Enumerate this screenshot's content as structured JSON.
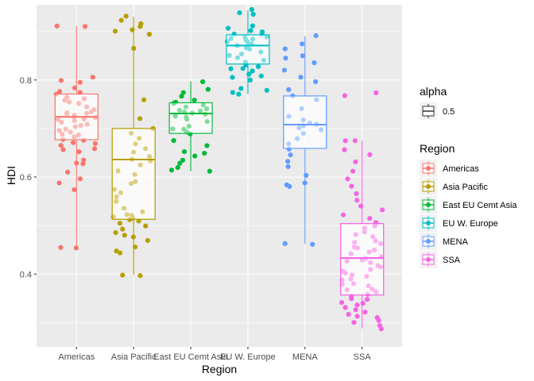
{
  "chart_data": {
    "type": "boxplot",
    "title": "",
    "xlabel": "Region",
    "ylabel": "HDI",
    "ylim": [
      0.25,
      0.955
    ],
    "yticks": [
      0.4,
      0.6,
      0.8
    ],
    "ytick_labels": [
      "0.4",
      "0.6",
      "0.8"
    ],
    "categories": [
      "Americas",
      "Asia Pacific",
      "East EU Cemt Asia",
      "EU W. Europe",
      "MENA",
      "SSA"
    ],
    "colors": {
      "Americas": "#F8766D",
      "Asia Pacific": "#B79F00",
      "East EU Cemt Asia": "#00BA38",
      "EU W. Europe": "#00BFC4",
      "MENA": "#619CFF",
      "SSA": "#F564E3"
    },
    "panel_background": "#EBEBEB",
    "grid": true,
    "box_alpha": 0.5,
    "series": [
      {
        "name": "Americas",
        "box": {
          "min": 0.454,
          "q1": 0.677,
          "median": 0.724,
          "q3": 0.771,
          "max": 0.911
        },
        "points": [
          0.454,
          0.454,
          0.574,
          0.589,
          0.596,
          0.611,
          0.626,
          0.628,
          0.634,
          0.652,
          0.655,
          0.66,
          0.665,
          0.668,
          0.671,
          0.675,
          0.679,
          0.682,
          0.686,
          0.689,
          0.692,
          0.697,
          0.7,
          0.703,
          0.706,
          0.709,
          0.712,
          0.715,
          0.718,
          0.72,
          0.722,
          0.724,
          0.725,
          0.727,
          0.729,
          0.73,
          0.733,
          0.736,
          0.74,
          0.745,
          0.75,
          0.754,
          0.758,
          0.762,
          0.766,
          0.77,
          0.774,
          0.778,
          0.785,
          0.795,
          0.8,
          0.805,
          0.91,
          0.911
        ]
      },
      {
        "name": "Asia Pacific",
        "box": {
          "min": 0.398,
          "q1": 0.513,
          "median": 0.636,
          "q3": 0.7,
          "max": 0.93
        },
        "points": [
          0.398,
          0.399,
          0.442,
          0.446,
          0.457,
          0.468,
          0.475,
          0.48,
          0.485,
          0.492,
          0.498,
          0.503,
          0.508,
          0.511,
          0.515,
          0.519,
          0.522,
          0.524,
          0.529,
          0.535,
          0.551,
          0.558,
          0.567,
          0.575,
          0.586,
          0.592,
          0.605,
          0.614,
          0.625,
          0.634,
          0.638,
          0.642,
          0.652,
          0.66,
          0.67,
          0.681,
          0.689,
          0.7,
          0.72,
          0.76,
          0.865,
          0.895,
          0.9,
          0.905,
          0.909,
          0.915,
          0.923,
          0.93
        ]
      },
      {
        "name": "East EU Cemt Asia",
        "box": {
          "min": 0.612,
          "q1": 0.69,
          "median": 0.731,
          "q3": 0.753,
          "max": 0.797
        },
        "points": [
          0.612,
          0.614,
          0.62,
          0.629,
          0.636,
          0.643,
          0.648,
          0.652,
          0.665,
          0.674,
          0.688,
          0.693,
          0.697,
          0.7,
          0.705,
          0.713,
          0.718,
          0.722,
          0.726,
          0.728,
          0.731,
          0.733,
          0.736,
          0.738,
          0.742,
          0.746,
          0.748,
          0.751,
          0.755,
          0.76,
          0.766,
          0.773,
          0.781,
          0.797
        ]
      },
      {
        "name": "EU W. Europe",
        "box": {
          "min": 0.771,
          "q1": 0.833,
          "median": 0.871,
          "q3": 0.893,
          "max": 0.944
        },
        "points": [
          0.771,
          0.775,
          0.779,
          0.782,
          0.8,
          0.805,
          0.809,
          0.812,
          0.818,
          0.822,
          0.825,
          0.829,
          0.832,
          0.835,
          0.84,
          0.845,
          0.85,
          0.855,
          0.858,
          0.862,
          0.865,
          0.868,
          0.871,
          0.873,
          0.875,
          0.877,
          0.879,
          0.88,
          0.883,
          0.885,
          0.888,
          0.89,
          0.893,
          0.896,
          0.9,
          0.903,
          0.906,
          0.91,
          0.935,
          0.94,
          0.944
        ]
      },
      {
        "name": "MENA",
        "box": {
          "min": 0.462,
          "q1": 0.659,
          "median": 0.708,
          "q3": 0.767,
          "max": 0.89
        },
        "points": [
          0.462,
          0.462,
          0.58,
          0.583,
          0.588,
          0.605,
          0.621,
          0.631,
          0.645,
          0.657,
          0.668,
          0.68,
          0.69,
          0.698,
          0.702,
          0.705,
          0.708,
          0.711,
          0.719,
          0.725,
          0.74,
          0.76,
          0.768,
          0.78,
          0.795,
          0.805,
          0.82,
          0.835,
          0.845,
          0.85,
          0.865,
          0.875,
          0.89
        ]
      },
      {
        "name": "SSA",
        "box": {
          "min": 0.288,
          "q1": 0.357,
          "median": 0.433,
          "q3": 0.504,
          "max": 0.675
        },
        "points": [
          0.288,
          0.293,
          0.3,
          0.305,
          0.31,
          0.314,
          0.318,
          0.322,
          0.327,
          0.331,
          0.335,
          0.339,
          0.343,
          0.347,
          0.351,
          0.355,
          0.358,
          0.362,
          0.366,
          0.37,
          0.374,
          0.378,
          0.382,
          0.386,
          0.39,
          0.394,
          0.398,
          0.402,
          0.406,
          0.41,
          0.414,
          0.418,
          0.422,
          0.426,
          0.43,
          0.433,
          0.437,
          0.441,
          0.445,
          0.449,
          0.453,
          0.457,
          0.461,
          0.465,
          0.47,
          0.476,
          0.482,
          0.488,
          0.494,
          0.5,
          0.507,
          0.515,
          0.523,
          0.531,
          0.54,
          0.551,
          0.565,
          0.58,
          0.595,
          0.612,
          0.63,
          0.645,
          0.655,
          0.675,
          0.675,
          0.768,
          0.775
        ]
      }
    ],
    "legend": [
      {
        "title": "alpha",
        "items": [
          {
            "label": "0.5"
          }
        ]
      },
      {
        "title": "Region",
        "items": [
          {
            "label": "Americas"
          },
          {
            "label": "Asia Pacific"
          },
          {
            "label": "East EU Cemt Asia"
          },
          {
            "label": "EU W. Europe"
          },
          {
            "label": "MENA"
          },
          {
            "label": "SSA"
          }
        ]
      }
    ],
    "legend_position": "right"
  }
}
